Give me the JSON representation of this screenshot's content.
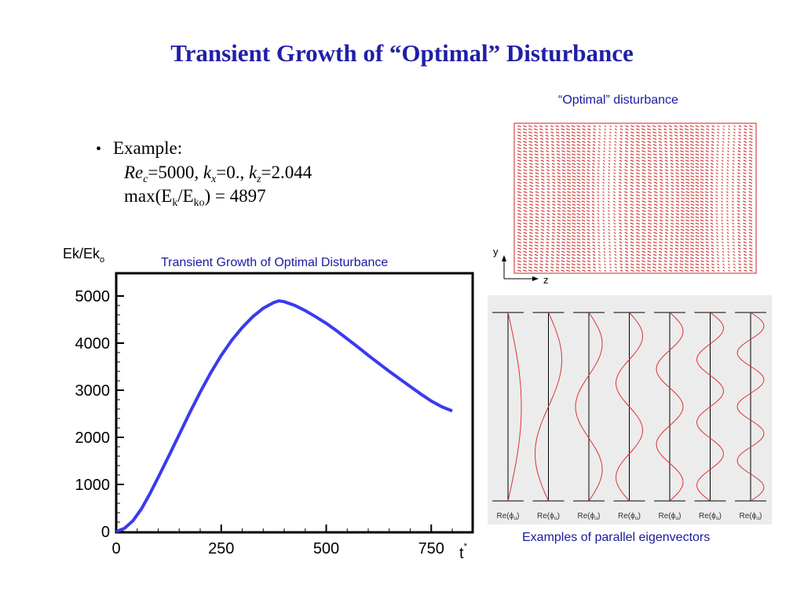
{
  "slide": {
    "title": "Transient Growth of “Optimal” Disturbance"
  },
  "bullet": {
    "label": "Example:",
    "re_sym": "Re",
    "re_sub": "c",
    "re_val": "=5000,",
    "kx_sym": "k",
    "kx_sub": "x",
    "kx_val": "=0.,",
    "kz_sym": "k",
    "kz_sub": "z",
    "kz_val": "=2.044",
    "max_prefix": "max(E",
    "max_sub1": "k",
    "max_mid": "/E",
    "max_sub2": "ko",
    "max_suffix": ") = 4897"
  },
  "disturbance": {
    "caption": "“Optimal” disturbance",
    "axis_y": "y",
    "axis_z": "z",
    "color": "#cc2222"
  },
  "eigen": {
    "caption": "Examples of parallel eigenvectors",
    "labels": [
      "Re(ϕ",
      "Re(ϕ",
      "Re(ϕ",
      "Re(ϕ",
      "Re(ϕ",
      "Re(ϕ",
      "Re(ϕ"
    ],
    "label_sub": "u",
    "label_close": ")",
    "periods": [
      0.5,
      1,
      1.5,
      2,
      2.5,
      3,
      3.5
    ]
  },
  "chart_data": {
    "type": "line",
    "title": "Transient Growth of Optimal Disturbance",
    "ylabel": "Ek/Ek",
    "ylabel_sub": "o",
    "xlabel": "t",
    "xlabel_sup": "*",
    "xlim": [
      0,
      800
    ],
    "ylim": [
      0,
      5000
    ],
    "x_ticks": [
      0,
      250,
      500,
      750
    ],
    "y_ticks": [
      0,
      1000,
      2000,
      3000,
      4000,
      5000
    ],
    "grid": false,
    "color": "#3a3af0",
    "series": [
      {
        "x": [
          0,
          20,
          40,
          60,
          80,
          100,
          125,
          150,
          175,
          200,
          225,
          250,
          275,
          300,
          325,
          350,
          375,
          387,
          400,
          425,
          450,
          475,
          500,
          525,
          550,
          575,
          600,
          625,
          650,
          675,
          700,
          725,
          750,
          775,
          800
        ],
        "y": [
          0,
          70,
          230,
          480,
          800,
          1150,
          1600,
          2060,
          2520,
          2960,
          3370,
          3740,
          4060,
          4330,
          4560,
          4740,
          4860,
          4897,
          4880,
          4800,
          4690,
          4560,
          4420,
          4260,
          4090,
          3920,
          3740,
          3570,
          3400,
          3240,
          3080,
          2920,
          2770,
          2650,
          2560
        ]
      }
    ]
  }
}
